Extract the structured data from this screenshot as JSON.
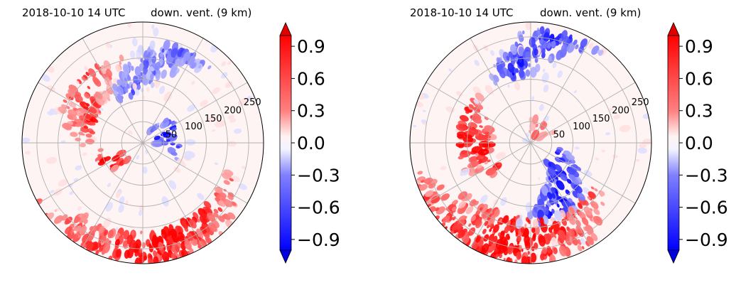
{
  "chart_data": [
    {
      "type": "heatmap",
      "projection": "polar",
      "title_left": "2018-10-10 14 UTC",
      "title_left_color": "#0000ff",
      "title_right": "down. vent. (9 km)",
      "range_rings": [
        50,
        100,
        150,
        200,
        250
      ],
      "radial_range_km": [
        0,
        285
      ],
      "colorbar": {
        "ticks": [
          "0.9",
          "0.6",
          "0.3",
          "0.0",
          "−0.3",
          "−0.6",
          "−0.9"
        ],
        "tick_values": [
          0.9,
          0.6,
          0.3,
          0.0,
          -0.3,
          -0.6,
          -0.9
        ],
        "vmin": -1.0,
        "vmax": 1.0,
        "colormap": "bwr",
        "extend": "both"
      },
      "features": [
        {
          "sign": 1,
          "angle": 160,
          "r0": 210,
          "r1": 285,
          "span": 110,
          "strength": 1.0
        },
        {
          "sign": 1,
          "angle": 215,
          "r0": 25,
          "r1": 110,
          "span": 40,
          "strength": 1.0
        },
        {
          "sign": 1,
          "angle": 290,
          "r0": 120,
          "r1": 210,
          "span": 60,
          "strength": 0.75
        },
        {
          "sign": -1,
          "angle": 60,
          "r0": 30,
          "r1": 90,
          "span": 70,
          "strength": 1.0
        },
        {
          "sign": -1,
          "angle": 340,
          "r0": 110,
          "r1": 240,
          "span": 40,
          "strength": 0.6
        }
      ]
    },
    {
      "type": "heatmap",
      "projection": "polar",
      "title_left": "2018-10-10 14 UTC",
      "title_left_color": "#0000ff",
      "title_right": "down. vent. (9 km)",
      "range_rings": [
        50,
        100,
        150,
        200,
        250
      ],
      "radial_range_km": [
        0,
        285
      ],
      "colorbar": {
        "ticks": [
          "0.9",
          "0.6",
          "0.3",
          "0.0",
          "−0.3",
          "−0.6",
          "−0.9"
        ],
        "tick_values": [
          0.9,
          0.6,
          0.3,
          0.0,
          -0.3,
          -0.6,
          -0.9
        ],
        "vmin": -1.0,
        "vmax": 1.0,
        "colormap": "bwr",
        "extend": "both"
      },
      "features": [
        {
          "sign": 1,
          "angle": 170,
          "r0": 180,
          "r1": 285,
          "span": 110,
          "strength": 1.0
        },
        {
          "sign": 1,
          "angle": 255,
          "r0": 90,
          "r1": 170,
          "span": 70,
          "strength": 1.0
        },
        {
          "sign": 1,
          "angle": 20,
          "r0": 10,
          "r1": 60,
          "span": 80,
          "strength": 0.7
        },
        {
          "sign": -1,
          "angle": 120,
          "r0": 60,
          "r1": 200,
          "span": 50,
          "strength": 1.0
        },
        {
          "sign": -1,
          "angle": 340,
          "r0": 160,
          "r1": 270,
          "span": 40,
          "strength": 0.8
        }
      ]
    }
  ]
}
